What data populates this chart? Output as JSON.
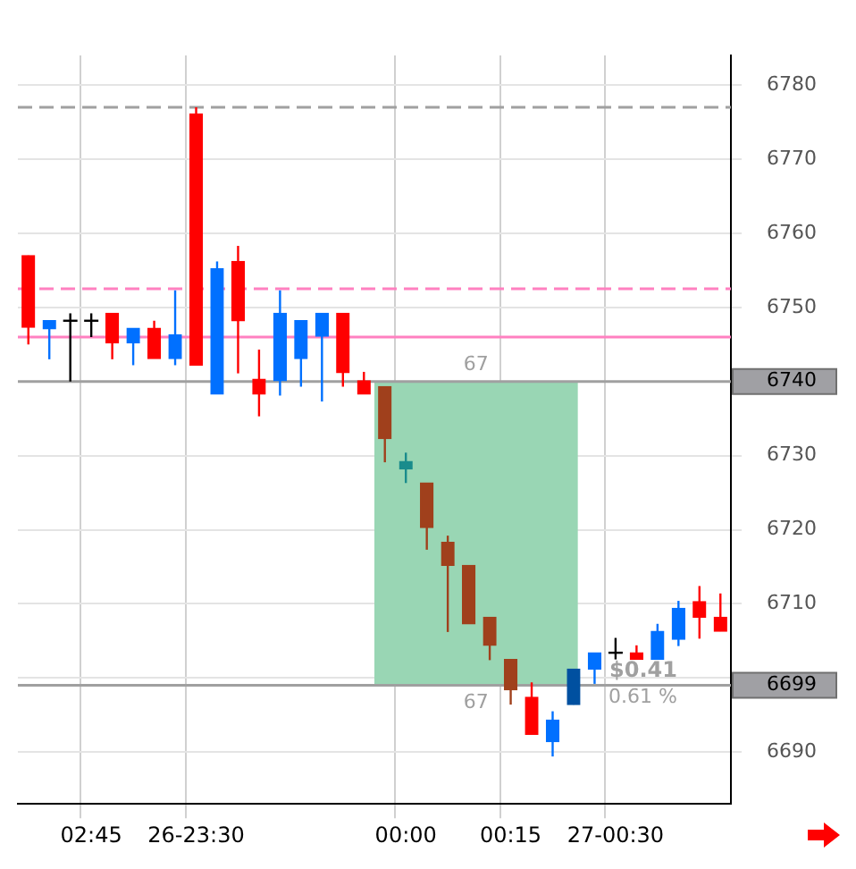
{
  "chart_data": {
    "type": "candlestick",
    "categories": [
      null,
      null,
      null,
      "02:45",
      null,
      null,
      null,
      null,
      "26-23:30",
      null,
      null,
      null,
      null,
      null,
      null,
      null,
      null,
      null,
      "00:00",
      null,
      null,
      null,
      null,
      "00:15",
      null,
      null,
      null,
      null,
      "27-00:30",
      null,
      null,
      null,
      null,
      null
    ],
    "ohlc": [
      [
        6757,
        6757,
        6745,
        6747.3
      ],
      [
        6747.1,
        6748.2,
        6743,
        6748.2
      ],
      [
        6748.2,
        6749.2,
        6740,
        6748.2
      ],
      [
        6748.2,
        6749.2,
        6746,
        6748.2
      ],
      [
        6749.2,
        6749.2,
        6743,
        6745.2
      ],
      [
        6745.2,
        6747.2,
        6742.2,
        6747.2
      ],
      [
        6747.2,
        6748.2,
        6743.1,
        6743.1
      ],
      [
        6743.1,
        6752.3,
        6742.2,
        6746.3
      ],
      [
        6776.1,
        6777,
        6742.2,
        6742.2
      ],
      [
        6738.3,
        6756.2,
        6738.3,
        6755.2
      ],
      [
        6756.2,
        6758.3,
        6741.1,
        6748.2
      ],
      [
        6740.3,
        6744.3,
        6735.3,
        6738.3
      ],
      [
        6740.1,
        6752.3,
        6738.1,
        6749.2
      ],
      [
        6743.1,
        6748.2,
        6739.3,
        6748.2
      ],
      [
        6746.1,
        6749.2,
        6737.3,
        6749.2
      ],
      [
        6749.2,
        6749.2,
        6739.3,
        6741.2
      ],
      [
        6740.1,
        6741.3,
        6738.3,
        6738.3
      ],
      [
        6739.3,
        6739.3,
        6729.1,
        6732.3
      ],
      [
        6728.2,
        6730.4,
        6726.3,
        6729.2
      ],
      [
        6726.3,
        6726.3,
        6717.3,
        6720.3
      ],
      [
        6718.3,
        6719.2,
        6706.2,
        6715.2
      ],
      [
        6715.2,
        6715.2,
        6707.3,
        6707.3
      ],
      [
        6708.2,
        6708.2,
        6702.4,
        6704.4
      ],
      [
        6702.5,
        6702.5,
        6696.4,
        6698.4
      ],
      [
        6697.4,
        6699.4,
        6692.4,
        6692.4
      ],
      [
        6691.4,
        6695.5,
        6689.4,
        6694.3
      ],
      [
        6696.4,
        6701.2,
        6696.4,
        6701.2
      ],
      [
        6701.2,
        6703.4,
        6699.2,
        6703.4
      ],
      [
        6703.4,
        6705.4,
        6702.5,
        6703.4
      ],
      [
        6703.4,
        6704.4,
        6702.5,
        6702.5
      ],
      [
        6702.5,
        6707.3,
        6702.5,
        6706.3
      ],
      [
        6705.2,
        6710.4,
        6704.3,
        6709.4
      ],
      [
        6710.3,
        6712.4,
        6705.3,
        6708.2
      ],
      [
        6708.2,
        6711.4,
        6706.3,
        6706.3
      ]
    ],
    "colors": [
      "#ff0000",
      "#0070ff",
      "#000000",
      "#000000",
      "#ff0000",
      "#0070ff",
      "#ff0000",
      "#0070ff",
      "#ff0000",
      "#0070ff",
      "#ff0000",
      "#ff0000",
      "#0070ff",
      "#0070ff",
      "#0070ff",
      "#ff0000",
      "#ff0000",
      "#a0401c",
      "#1a8c8c",
      "#a0401c",
      "#a0401c",
      "#a0401c",
      "#a0401c",
      "#a0401c",
      "#ff0000",
      "#0070ff",
      "#0050a0",
      "#0070ff",
      "#000000",
      "#ff0000",
      "#0070ff",
      "#0070ff",
      "#ff0000",
      "#ff0000"
    ],
    "ylim": [
      6683,
      6784
    ],
    "yticks": [
      6690,
      {
        "value": 6700,
        "label": null
      },
      6710,
      6720,
      6730,
      6740,
      6750,
      6760,
      6770,
      6780
    ],
    "grid": true,
    "ref_lines": [
      {
        "axis": "y",
        "value": 6777,
        "color": "#a0a0a0",
        "line_style": "dashed"
      },
      {
        "axis": "y",
        "value": 6752.5,
        "color": "#ff80c0",
        "line_style": "dashed"
      },
      {
        "axis": "y",
        "value": 6746,
        "color": "#ff80c0",
        "line_style": "solid"
      },
      {
        "axis": "y",
        "value": 6740,
        "label": "6740",
        "color": "#a0a0a0",
        "line_style": "solid"
      },
      {
        "axis": "y",
        "value": 6699,
        "label": "6699",
        "color": "#a0a0a0",
        "line_style": "solid"
      }
    ],
    "bands": [
      {
        "axis": "y",
        "from": 6699,
        "to": 6740,
        "color": "#99d6b4"
      }
    ],
    "annotations": [
      "67",
      "67",
      "$0.41",
      "0.61 %"
    ]
  }
}
